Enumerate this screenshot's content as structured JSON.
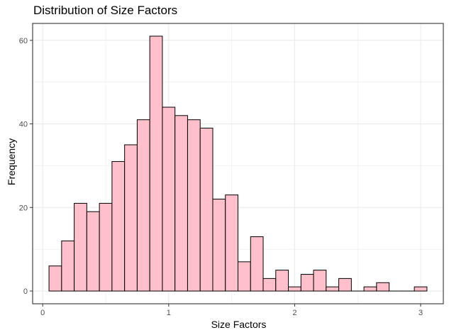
{
  "chart_data": {
    "type": "bar",
    "title": "Distribution of Size Factors",
    "xlabel": "Size Factors",
    "ylabel": "Frequency",
    "xlim": [
      -0.08,
      3.18
    ],
    "ylim": [
      -3.05,
      64.05
    ],
    "x_ticks": [
      0,
      1,
      2,
      3
    ],
    "y_ticks": [
      0,
      20,
      40,
      60
    ],
    "grid": true,
    "bin_width": 0.1,
    "bin_centers": [
      0.1,
      0.2,
      0.3,
      0.4,
      0.5,
      0.6,
      0.7,
      0.8,
      0.9,
      1.0,
      1.1,
      1.2,
      1.3,
      1.4,
      1.5,
      1.6,
      1.7,
      1.8,
      1.9,
      2.0,
      2.1,
      2.2,
      2.3,
      2.4,
      2.5,
      2.6,
      2.7,
      2.8,
      2.9,
      3.0
    ],
    "values": [
      6,
      12,
      21,
      19,
      21,
      31,
      35,
      41,
      61,
      44,
      42,
      41,
      39,
      22,
      23,
      7,
      13,
      3,
      5,
      1,
      4,
      5,
      1,
      3,
      0,
      1,
      2,
      0,
      0,
      1
    ],
    "bar_fill": "#FFC0CB",
    "bar_stroke": "#000000",
    "panel_border": "#333333",
    "grid_color": "#EBEBEB"
  }
}
